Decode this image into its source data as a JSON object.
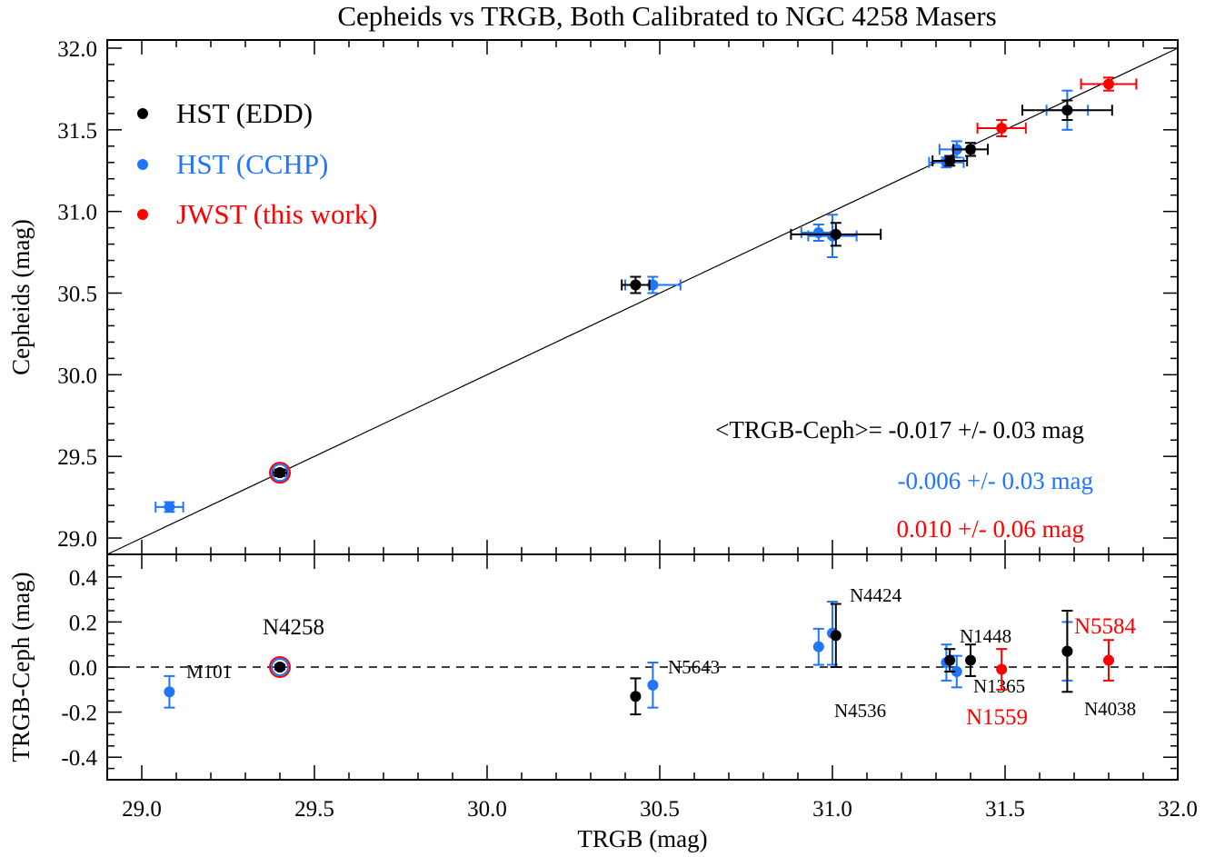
{
  "colors": {
    "hst_edd": "#000000",
    "hst_cchp": "#1f75fe",
    "jwst": "#ff0000"
  },
  "chart_data": [
    {
      "type": "scatter",
      "title": "Cepheids vs TRGB, Both Calibrated to NGC 4258 Masers",
      "xlabel": "",
      "ylabel": "Cepheids (mag)",
      "xlim": [
        28.9,
        32.0
      ],
      "ylim": [
        28.9,
        32.05
      ],
      "x_ticks": [
        "29.0",
        "29.5",
        "30.0",
        "30.5",
        "31.0",
        "31.5",
        "32.0"
      ],
      "y_ticks": [
        "29.0",
        "29.5",
        "30.0",
        "30.5",
        "31.0",
        "31.5",
        "32.0"
      ],
      "reference_line": "y = x",
      "legend_position": "top-left",
      "legend": [
        {
          "label": "HST (EDD)",
          "color": "#000000"
        },
        {
          "label": "HST (CCHP)",
          "color": "#1f75fe"
        },
        {
          "label": "JWST (this work)",
          "color": "#ff0000"
        }
      ],
      "annotations": [
        {
          "text": "<TRGB-Ceph>= -0.017 +/- 0.03  mag",
          "color": "#000000"
        },
        {
          "text": "-0.006 +/- 0.03  mag",
          "color": "#1f75fe"
        },
        {
          "text": "0.010 +/- 0.06  mag",
          "color": "#ff0000"
        }
      ],
      "series": [
        {
          "name": "HST (EDD)",
          "points": [
            {
              "x": 29.4,
              "y": 29.4,
              "xerr": 0.02,
              "yerr": 0.02
            },
            {
              "x": 30.43,
              "y": 30.55,
              "xerr": 0.04,
              "yerr": 0.05
            },
            {
              "x": 31.01,
              "y": 30.86,
              "xerr": 0.13,
              "yerr": 0.07
            },
            {
              "x": 31.34,
              "y": 31.31,
              "xerr": 0.05,
              "yerr": 0.03
            },
            {
              "x": 31.4,
              "y": 31.38,
              "xerr": 0.05,
              "yerr": 0.04
            },
            {
              "x": 31.68,
              "y": 31.62,
              "xerr": 0.13,
              "yerr": 0.06
            }
          ]
        },
        {
          "name": "HST (CCHP)",
          "points": [
            {
              "x": 29.08,
              "y": 29.19,
              "xerr": 0.04,
              "yerr": 0.03
            },
            {
              "x": 30.48,
              "y": 30.55,
              "xerr": 0.08,
              "yerr": 0.05
            },
            {
              "x": 30.96,
              "y": 30.87,
              "xerr": 0.05,
              "yerr": 0.05
            },
            {
              "x": 31.0,
              "y": 30.85,
              "xerr": 0.07,
              "yerr": 0.13
            },
            {
              "x": 31.33,
              "y": 31.3,
              "xerr": 0.05,
              "yerr": 0.03
            },
            {
              "x": 31.36,
              "y": 31.38,
              "xerr": 0.05,
              "yerr": 0.05
            },
            {
              "x": 31.68,
              "y": 31.62,
              "xerr": 0.06,
              "yerr": 0.12
            }
          ]
        },
        {
          "name": "JWST (this work)",
          "points": [
            {
              "x": 29.4,
              "y": 29.4,
              "xerr": 0.02,
              "yerr": 0.02
            },
            {
              "x": 31.49,
              "y": 31.51,
              "xerr": 0.07,
              "yerr": 0.05
            },
            {
              "x": 31.8,
              "y": 31.78,
              "xerr": 0.08,
              "yerr": 0.04
            }
          ]
        }
      ]
    },
    {
      "type": "scatter",
      "title": "",
      "xlabel": "TRGB (mag)",
      "ylabel": "TRGB-Ceph (mag)",
      "xlim": [
        28.9,
        32.0
      ],
      "ylim": [
        -0.5,
        0.5
      ],
      "x_ticks": [
        "29.0",
        "29.5",
        "30.0",
        "30.5",
        "31.0",
        "31.5",
        "32.0"
      ],
      "y_ticks": [
        "-0.4",
        "-0.2",
        "0.0",
        "0.2",
        "0.4"
      ],
      "reference_line": "y = 0 (dashed)",
      "galaxy_labels": [
        {
          "text": "M101",
          "color": "#000000"
        },
        {
          "text": "N4258",
          "color": "#000000"
        },
        {
          "text": "N5643",
          "color": "#000000"
        },
        {
          "text": "N4424",
          "color": "#000000"
        },
        {
          "text": "N4536",
          "color": "#000000"
        },
        {
          "text": "N1448",
          "color": "#000000"
        },
        {
          "text": "N1365",
          "color": "#000000"
        },
        {
          "text": "N1559",
          "color": "#ff0000"
        },
        {
          "text": "N5584",
          "color": "#ff0000"
        },
        {
          "text": "N4038",
          "color": "#000000"
        }
      ],
      "series": [
        {
          "name": "HST (EDD)",
          "points": [
            {
              "x": 29.4,
              "y": 0.0,
              "yerr": 0.01
            },
            {
              "x": 30.43,
              "y": -0.13,
              "yerr": 0.08
            },
            {
              "x": 31.01,
              "y": 0.14,
              "yerr": 0.14
            },
            {
              "x": 31.34,
              "y": 0.03,
              "yerr": 0.05
            },
            {
              "x": 31.4,
              "y": 0.03,
              "yerr": 0.07
            },
            {
              "x": 31.68,
              "y": 0.07,
              "yerr": 0.18
            }
          ]
        },
        {
          "name": "HST (CCHP)",
          "points": [
            {
              "x": 29.08,
              "y": -0.11,
              "yerr": 0.07
            },
            {
              "x": 30.48,
              "y": -0.08,
              "yerr": 0.1
            },
            {
              "x": 30.96,
              "y": 0.09,
              "yerr": 0.08
            },
            {
              "x": 31.0,
              "y": 0.15,
              "yerr": 0.14
            },
            {
              "x": 31.33,
              "y": 0.02,
              "yerr": 0.08
            },
            {
              "x": 31.36,
              "y": -0.02,
              "yerr": 0.07
            },
            {
              "x": 31.68,
              "y": 0.07,
              "yerr": 0.13
            }
          ]
        },
        {
          "name": "JWST (this work)",
          "points": [
            {
              "x": 29.4,
              "y": 0.0,
              "yerr": 0.01
            },
            {
              "x": 31.49,
              "y": -0.01,
              "yerr": 0.09
            },
            {
              "x": 31.8,
              "y": 0.03,
              "yerr": 0.09
            }
          ]
        }
      ]
    }
  ]
}
